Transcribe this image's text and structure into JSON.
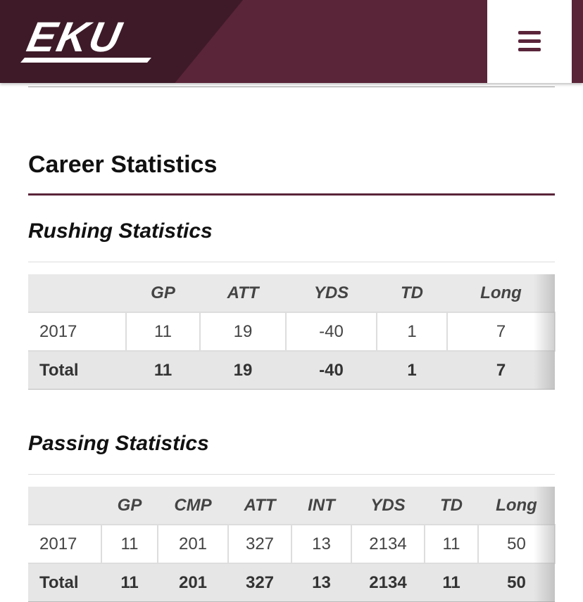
{
  "header": {
    "logo": "EKU"
  },
  "section_title": "Career Statistics",
  "tables": [
    {
      "title": "Rushing Statistics",
      "columns": [
        "GP",
        "ATT",
        "YDS",
        "TD",
        "Long"
      ],
      "rows": [
        [
          "2017",
          11,
          19,
          -40,
          1,
          7
        ]
      ],
      "total": [
        "Total",
        11,
        19,
        -40,
        1,
        7
      ]
    },
    {
      "title": "Passing Statistics",
      "columns": [
        "GP",
        "CMP",
        "ATT",
        "INT",
        "YDS",
        "TD",
        "Long"
      ],
      "rows": [
        [
          "2017",
          11,
          201,
          327,
          13,
          2134,
          11,
          50
        ]
      ],
      "total": [
        "Total",
        11,
        201,
        327,
        13,
        2134,
        11,
        50
      ]
    }
  ]
}
